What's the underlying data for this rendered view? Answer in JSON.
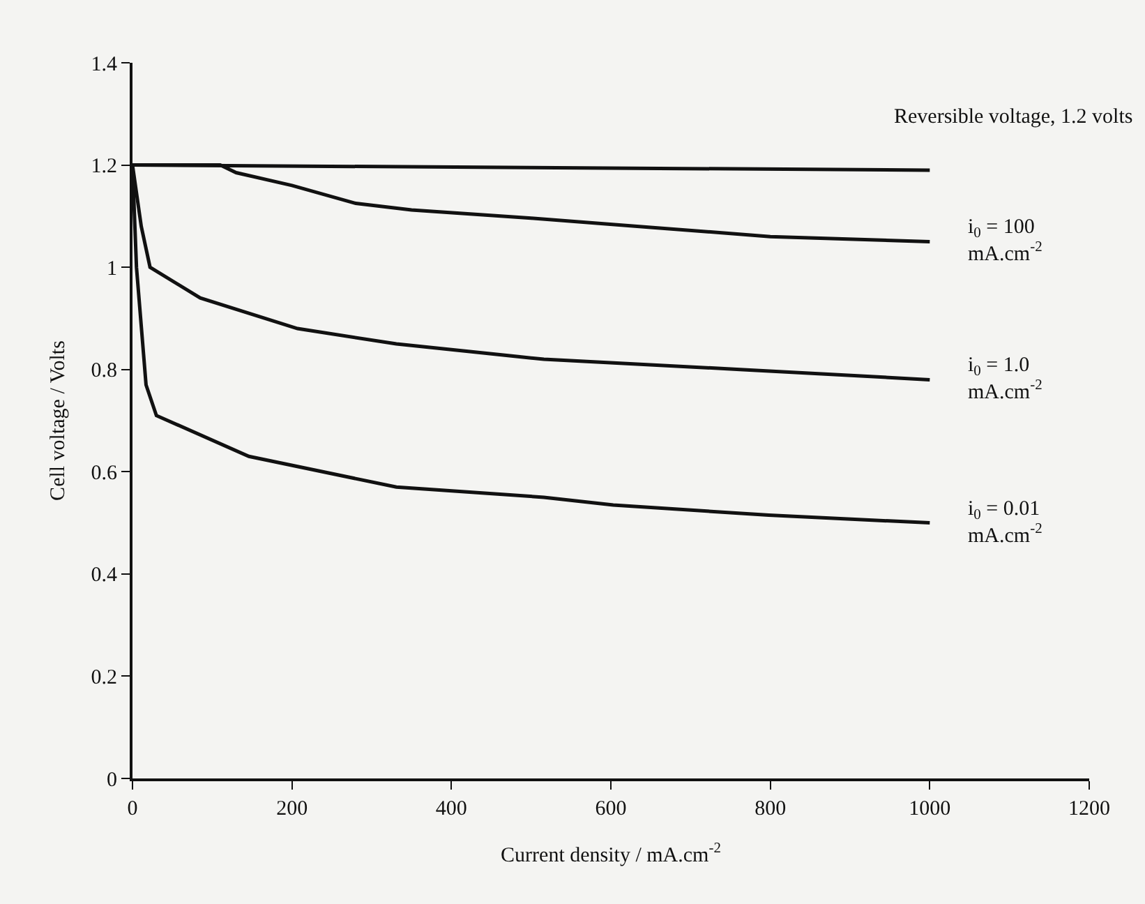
{
  "chart_data": {
    "type": "line",
    "xlabel": "Current density / mA.cm$^{-2}$",
    "ylabel": "Cell voltage / Volts",
    "xlim": [
      0,
      1200
    ],
    "xticks": [
      0,
      200,
      400,
      600,
      800,
      1000,
      1200
    ],
    "ylim": [
      0,
      1.4
    ],
    "yticks": [
      0,
      0.2,
      0.4,
      0.6,
      0.8,
      1,
      1.2,
      1.4
    ],
    "grid": false,
    "legend": false,
    "marker": "none",
    "line_style": "solid",
    "series": [
      {
        "name": "Reversible voltage, 1.2 volts",
        "color": "#111111",
        "x": [
          0,
          500,
          1000
        ],
        "values": [
          1.2,
          1.195,
          1.19
        ]
      },
      {
        "name": "i$_{0}$ = 100\nmA.cm$^{-2}$",
        "color": "#111111",
        "x": [
          0,
          110,
          130,
          200,
          280,
          350,
          500,
          650,
          800,
          1000
        ],
        "values": [
          1.2,
          1.2,
          1.185,
          1.16,
          1.125,
          1.112,
          1.096,
          1.078,
          1.06,
          1.05
        ]
      },
      {
        "name": "i$_{0}$ = 1.0\nmA.cm$^{-2}$",
        "color": "#111111",
        "x": [
          0,
          11,
          22,
          85,
          207,
          331,
          516,
          762,
          1000
        ],
        "values": [
          1.2,
          1.08,
          1.0,
          0.94,
          0.88,
          0.85,
          0.82,
          0.8,
          0.78
        ]
      },
      {
        "name": "i$_{0}$ = 0.01\nmA.cm$^{-2}$",
        "color": "#111111",
        "x": [
          0,
          5,
          17,
          30,
          146,
          331,
          516,
          603,
          798,
          1000
        ],
        "values": [
          1.2,
          1.0,
          0.77,
          0.71,
          0.63,
          0.57,
          0.55,
          0.535,
          0.515,
          0.5
        ]
      }
    ]
  }
}
